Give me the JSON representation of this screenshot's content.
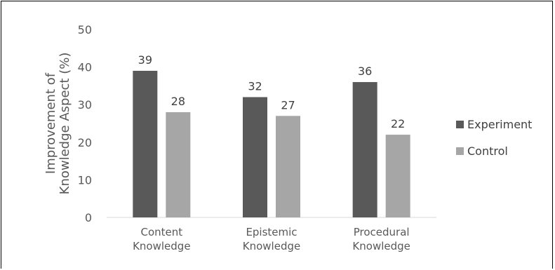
{
  "chart_data": {
    "type": "bar",
    "title": "",
    "xlabel": "",
    "ylabel_lines": [
      "Improvement of",
      "Knowledge Aspect (%)"
    ],
    "categories": [
      [
        "Content",
        "Knowledge"
      ],
      [
        "Epistemic",
        "Knowledge"
      ],
      [
        "Procedural",
        "Knowledge"
      ]
    ],
    "series": [
      {
        "name": "Experiment",
        "color": "#595959",
        "values": [
          39,
          32,
          36
        ]
      },
      {
        "name": "Control",
        "color": "#a6a6a6",
        "values": [
          28,
          27,
          22
        ]
      }
    ],
    "ylim": [
      0,
      50
    ],
    "yticks": [
      0,
      10,
      20,
      30,
      40,
      50
    ],
    "grid": false,
    "legend": "right"
  }
}
